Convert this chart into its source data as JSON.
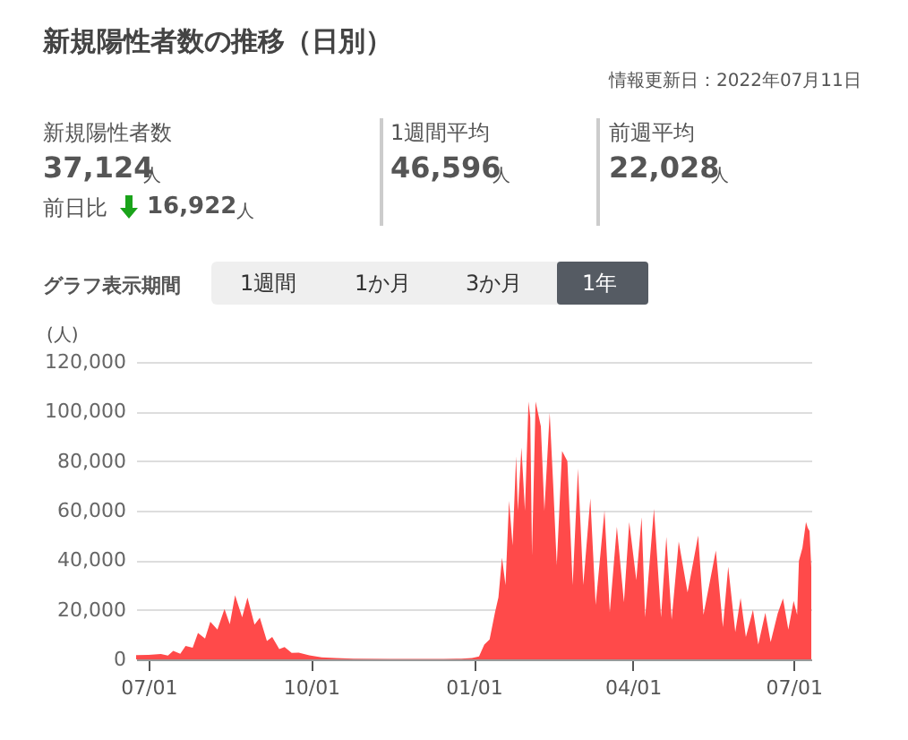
{
  "chart_data": {
    "type": "area",
    "title": "新規陽性者数の推移（日別）",
    "ylabel": "(人)",
    "annotations": [
      "情報更新日：2022年07月11日",
      "新規陽性者数",
      "37,124",
      "人",
      "前日比",
      "16,922",
      "人",
      "1週間平均",
      "46,596",
      "人",
      "前週平均",
      "22,028",
      "人",
      "グラフ表示期間",
      "1週間",
      "1か月",
      "3か月",
      "1年"
    ],
    "x": [
      "2021-06-24",
      "2021-07-01",
      "2021-07-08",
      "2021-07-12",
      "2021-07-15",
      "2021-07-19",
      "2021-07-22",
      "2021-07-26",
      "2021-07-29",
      "2021-08-02",
      "2021-08-05",
      "2021-08-09",
      "2021-08-13",
      "2021-08-16",
      "2021-08-19",
      "2021-08-23",
      "2021-08-26",
      "2021-08-30",
      "2021-09-02",
      "2021-09-06",
      "2021-09-09",
      "2021-09-13",
      "2021-09-16",
      "2021-09-20",
      "2021-09-24",
      "2021-09-30",
      "2021-10-07",
      "2021-10-15",
      "2021-10-25",
      "2021-11-15",
      "2021-12-15",
      "2021-12-25",
      "2021-12-31",
      "2022-01-04",
      "2022-01-07",
      "2022-01-10",
      "2022-01-13",
      "2022-01-15",
      "2022-01-17",
      "2022-01-19",
      "2022-01-21",
      "2022-01-23",
      "2022-01-25",
      "2022-01-26",
      "2022-01-28",
      "2022-01-30",
      "2022-02-01",
      "2022-02-02",
      "2022-02-03",
      "2022-02-05",
      "2022-02-08",
      "2022-02-10",
      "2022-02-13",
      "2022-02-15",
      "2022-02-17",
      "2022-02-20",
      "2022-02-23",
      "2022-02-26",
      "2022-03-01",
      "2022-03-04",
      "2022-03-08",
      "2022-03-11",
      "2022-03-16",
      "2022-03-19",
      "2022-03-23",
      "2022-03-27",
      "2022-03-30",
      "2022-04-03",
      "2022-04-06",
      "2022-04-08",
      "2022-04-13",
      "2022-04-17",
      "2022-04-20",
      "2022-04-23",
      "2022-04-27",
      "2022-05-02",
      "2022-05-08",
      "2022-05-11",
      "2022-05-18",
      "2022-05-22",
      "2022-05-25",
      "2022-05-29",
      "2022-06-01",
      "2022-06-04",
      "2022-06-08",
      "2022-06-11",
      "2022-06-15",
      "2022-06-18",
      "2022-06-22",
      "2022-06-25",
      "2022-06-28",
      "2022-07-01",
      "2022-07-03",
      "2022-07-04",
      "2022-07-06",
      "2022-07-08",
      "2022-07-09",
      "2022-07-10",
      "2022-07-11"
    ],
    "series": [
      {
        "color": "#ff4a4a",
        "values": [
          1700,
          1800,
          2200,
          1500,
          3400,
          2300,
          5400,
          4700,
          10700,
          8400,
          15200,
          12000,
          20300,
          14200,
          25800,
          17000,
          24900,
          14000,
          16800,
          7400,
          9000,
          4200,
          5000,
          2600,
          2700,
          1600,
          800,
          500,
          300,
          200,
          200,
          300,
          500,
          1200,
          6000,
          8000,
          18800,
          25000,
          41000,
          30000,
          64000,
          46000,
          82000,
          60000,
          85500,
          60000,
          104000,
          97600,
          42000,
          104000,
          94000,
          60000,
          99500,
          70000,
          38000,
          84000,
          80000,
          30000,
          77000,
          30000,
          65000,
          22000,
          60000,
          19000,
          53500,
          23000,
          55400,
          32000,
          57400,
          17000,
          60700,
          17000,
          49400,
          16000,
          47500,
          27000,
          50000,
          18000,
          43900,
          13000,
          37400,
          11000,
          24800,
          9000,
          20000,
          6000,
          18800,
          7000,
          18500,
          24600,
          12000,
          23600,
          18000,
          39800,
          45000,
          55400,
          53000,
          51800,
          37124
        ]
      }
    ],
    "xlim": [
      "2021-06-24",
      "2022-07-11"
    ],
    "xticks": [
      {
        "value": "2021-07-01",
        "label": "07/01"
      },
      {
        "value": "2021-10-01",
        "label": "10/01"
      },
      {
        "value": "2022-01-01",
        "label": "01/01"
      },
      {
        "value": "2022-04-01",
        "label": "04/01"
      },
      {
        "value": "2022-07-01",
        "label": "07/01"
      }
    ],
    "ylim": [
      0,
      120000
    ],
    "yticks": [
      {
        "value": 0,
        "label": "0"
      },
      {
        "value": 20000,
        "label": "20,000"
      },
      {
        "value": 40000,
        "label": "40,000"
      },
      {
        "value": 60000,
        "label": "60,000"
      },
      {
        "value": 80000,
        "label": "80,000"
      },
      {
        "value": 100000,
        "label": "100,000"
      },
      {
        "value": 120000,
        "label": "120,000"
      }
    ],
    "grid": "y"
  }
}
